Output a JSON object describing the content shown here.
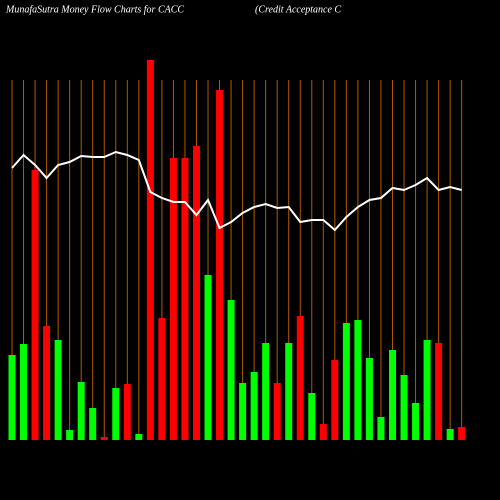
{
  "chart_data": {
    "type": "bar-line",
    "title": "MunafaSutra  Money Flow  Charts for CACC",
    "subtitle": "(Credit Acceptance   C",
    "categories": [
      null,
      null,
      null,
      null,
      null,
      null,
      null,
      null,
      null,
      null,
      null,
      null,
      null,
      null,
      null,
      null,
      null,
      null,
      null,
      null,
      null,
      null,
      null,
      null,
      null,
      null,
      null,
      null,
      null,
      null,
      null,
      null,
      null,
      null,
      null,
      null,
      null,
      null,
      null,
      null
    ],
    "values": [
      21.25,
      24,
      67.5,
      28.5,
      25,
      2.5,
      14.5,
      8,
      0.75,
      13,
      14,
      1.5,
      95,
      30.5,
      70.5,
      70.5,
      73.5,
      41.25,
      87.5,
      35,
      14.25,
      17,
      24.25,
      14.25,
      24.25,
      31,
      11.75,
      4,
      20,
      29.25,
      30,
      20.5,
      5.75,
      22.5,
      16.25,
      9.25,
      25,
      24.25,
      2.75,
      3.25
    ],
    "colors": [
      "#00ff00",
      "#00ff00",
      "#ff0000",
      "#ff0000",
      "#00ff00",
      "#00ff00",
      "#00ff00",
      "#00ff00",
      "#ff0000",
      "#00ff00",
      "#ff0000",
      "#00ff00",
      "#ff0000",
      "#ff0000",
      "#ff0000",
      "#ff0000",
      "#ff0000",
      "#00ff00",
      "#ff0000",
      "#00ff00",
      "#00ff00",
      "#00ff00",
      "#00ff00",
      "#ff0000",
      "#00ff00",
      "#ff0000",
      "#00ff00",
      "#ff0000",
      "#ff0000",
      "#00ff00",
      "#00ff00",
      "#00ff00",
      "#00ff00",
      "#00ff00",
      "#00ff00",
      "#00ff00",
      "#00ff00",
      "#ff0000",
      "#00ff00",
      "#ff0000"
    ],
    "line_values": [
      68,
      71.25,
      68.75,
      65.5,
      68.75,
      69.5,
      71,
      70.75,
      70.75,
      72,
      71.25,
      70,
      62,
      60.5,
      59.5,
      59.5,
      56.25,
      60,
      53,
      54.5,
      56.75,
      58.25,
      59,
      58,
      58.25,
      54.5,
      55,
      55,
      52.5,
      55.75,
      58.25,
      60,
      60.5,
      63,
      62.5,
      63.75,
      65.5,
      62.5,
      63.25,
      62.5
    ],
    "line_color": "#ffffff",
    "grid_color": "#b35900",
    "ylim": [
      0,
      100
    ]
  }
}
